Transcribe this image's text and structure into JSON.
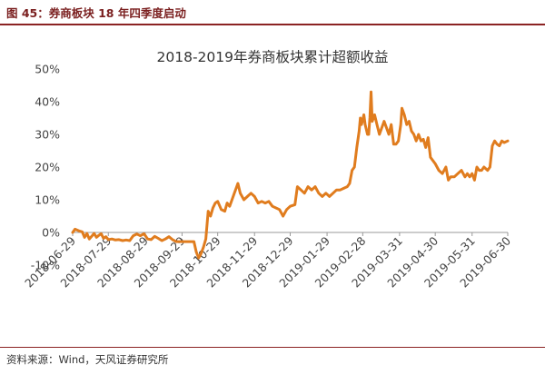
{
  "figure": {
    "caption": "图 45：券商板块 18 年四季度启动",
    "source": "资料来源：Wind，天风证券研究所"
  },
  "colors": {
    "series": "#e07c1e",
    "header_rule": "#8b2323",
    "caption": "#7a1f1f"
  },
  "chart_data": {
    "type": "line",
    "title": "2018-2019年券商板块累计超额收益",
    "y_ticks": [
      "50%",
      "40%",
      "30%",
      "20%",
      "10%",
      "0%",
      "-10%"
    ],
    "ylim": [
      -0.1,
      0.5
    ],
    "x_ticks": [
      "2018-06-29",
      "2018-07-29",
      "2018-08-29",
      "2018-09-29",
      "2018-10-29",
      "2018-11-29",
      "2018-12-29",
      "2019-01-29",
      "2019-02-28",
      "2019-03-31",
      "2019-04-30",
      "2019-05-31",
      "2019-06-30"
    ],
    "xlim": [
      "2018-06-29",
      "2019-06-30"
    ],
    "grid": false,
    "legend": "none",
    "series": [
      {
        "points": [
          [
            "2018-06-29",
            0.0
          ],
          [
            "2018-07-01",
            0.01
          ],
          [
            "2018-07-03",
            0.007
          ],
          [
            "2018-07-05",
            0.004
          ],
          [
            "2018-07-07",
            0.002
          ],
          [
            "2018-07-09",
            -0.015
          ],
          [
            "2018-07-11",
            -0.003
          ],
          [
            "2018-07-13",
            -0.02
          ],
          [
            "2018-07-15",
            -0.012
          ],
          [
            "2018-07-17",
            -0.003
          ],
          [
            "2018-07-19",
            -0.015
          ],
          [
            "2018-07-21",
            -0.009
          ],
          [
            "2018-07-23",
            -0.004
          ],
          [
            "2018-07-25",
            -0.018
          ],
          [
            "2018-07-27",
            -0.013
          ],
          [
            "2018-07-29",
            -0.022
          ],
          [
            "2018-08-01",
            -0.02
          ],
          [
            "2018-08-04",
            -0.023
          ],
          [
            "2018-08-07",
            -0.022
          ],
          [
            "2018-08-10",
            -0.025
          ],
          [
            "2018-08-13",
            -0.023
          ],
          [
            "2018-08-16",
            -0.025
          ],
          [
            "2018-08-19",
            -0.01
          ],
          [
            "2018-08-22",
            -0.005
          ],
          [
            "2018-08-25",
            -0.01
          ],
          [
            "2018-08-28",
            -0.004
          ],
          [
            "2018-08-31",
            -0.02
          ],
          [
            "2018-09-03",
            -0.022
          ],
          [
            "2018-09-06",
            -0.012
          ],
          [
            "2018-09-09",
            -0.018
          ],
          [
            "2018-09-12",
            -0.025
          ],
          [
            "2018-09-15",
            -0.02
          ],
          [
            "2018-09-18",
            -0.013
          ],
          [
            "2018-09-21",
            -0.022
          ],
          [
            "2018-09-24",
            -0.028
          ],
          [
            "2018-09-27",
            -0.028
          ],
          [
            "2018-09-30",
            -0.028
          ],
          [
            "2018-10-03",
            -0.028
          ],
          [
            "2018-10-06",
            -0.028
          ],
          [
            "2018-10-09",
            -0.028
          ],
          [
            "2018-10-11",
            -0.06
          ],
          [
            "2018-10-13",
            -0.078
          ],
          [
            "2018-10-15",
            -0.065
          ],
          [
            "2018-10-17",
            -0.045
          ],
          [
            "2018-10-19",
            -0.02
          ],
          [
            "2018-10-21",
            0.065
          ],
          [
            "2018-10-23",
            0.05
          ],
          [
            "2018-10-25",
            0.075
          ],
          [
            "2018-10-27",
            0.09
          ],
          [
            "2018-10-29",
            0.095
          ],
          [
            "2018-11-01",
            0.07
          ],
          [
            "2018-11-04",
            0.065
          ],
          [
            "2018-11-06",
            0.09
          ],
          [
            "2018-11-08",
            0.08
          ],
          [
            "2018-11-10",
            0.1
          ],
          [
            "2018-11-12",
            0.12
          ],
          [
            "2018-11-14",
            0.14
          ],
          [
            "2018-11-15",
            0.15
          ],
          [
            "2018-11-17",
            0.12
          ],
          [
            "2018-11-20",
            0.1
          ],
          [
            "2018-11-23",
            0.11
          ],
          [
            "2018-11-26",
            0.12
          ],
          [
            "2018-11-29",
            0.11
          ],
          [
            "2018-12-02",
            0.09
          ],
          [
            "2018-12-05",
            0.095
          ],
          [
            "2018-12-08",
            0.09
          ],
          [
            "2018-12-11",
            0.095
          ],
          [
            "2018-12-14",
            0.08
          ],
          [
            "2018-12-17",
            0.075
          ],
          [
            "2018-12-20",
            0.07
          ],
          [
            "2018-12-23",
            0.05
          ],
          [
            "2018-12-26",
            0.07
          ],
          [
            "2018-12-29",
            0.08
          ],
          [
            "2019-01-02",
            0.085
          ],
          [
            "2019-01-04",
            0.14
          ],
          [
            "2019-01-07",
            0.13
          ],
          [
            "2019-01-10",
            0.12
          ],
          [
            "2019-01-13",
            0.14
          ],
          [
            "2019-01-16",
            0.13
          ],
          [
            "2019-01-19",
            0.14
          ],
          [
            "2019-01-22",
            0.12
          ],
          [
            "2019-01-25",
            0.11
          ],
          [
            "2019-01-28",
            0.12
          ],
          [
            "2019-01-31",
            0.11
          ],
          [
            "2019-02-03",
            0.12
          ],
          [
            "2019-02-06",
            0.13
          ],
          [
            "2019-02-09",
            0.13
          ],
          [
            "2019-02-12",
            0.135
          ],
          [
            "2019-02-15",
            0.14
          ],
          [
            "2019-02-17",
            0.15
          ],
          [
            "2019-02-19",
            0.19
          ],
          [
            "2019-02-21",
            0.2
          ],
          [
            "2019-02-23",
            0.26
          ],
          [
            "2019-02-25",
            0.31
          ],
          [
            "2019-02-26",
            0.35
          ],
          [
            "2019-02-27",
            0.33
          ],
          [
            "2019-03-01",
            0.36
          ],
          [
            "2019-03-02",
            0.33
          ],
          [
            "2019-03-04",
            0.3
          ],
          [
            "2019-03-05",
            0.3
          ],
          [
            "2019-03-06",
            0.35
          ],
          [
            "2019-03-07",
            0.43
          ],
          [
            "2019-03-08",
            0.34
          ],
          [
            "2019-03-10",
            0.36
          ],
          [
            "2019-03-12",
            0.33
          ],
          [
            "2019-03-14",
            0.3
          ],
          [
            "2019-03-16",
            0.32
          ],
          [
            "2019-03-18",
            0.34
          ],
          [
            "2019-03-20",
            0.32
          ],
          [
            "2019-03-22",
            0.3
          ],
          [
            "2019-03-24",
            0.33
          ],
          [
            "2019-03-26",
            0.27
          ],
          [
            "2019-03-28",
            0.27
          ],
          [
            "2019-03-30",
            0.28
          ],
          [
            "2019-04-01",
            0.33
          ],
          [
            "2019-04-02",
            0.38
          ],
          [
            "2019-04-04",
            0.36
          ],
          [
            "2019-04-06",
            0.33
          ],
          [
            "2019-04-08",
            0.34
          ],
          [
            "2019-04-10",
            0.31
          ],
          [
            "2019-04-12",
            0.3
          ],
          [
            "2019-04-14",
            0.28
          ],
          [
            "2019-04-16",
            0.3
          ],
          [
            "2019-04-18",
            0.28
          ],
          [
            "2019-04-20",
            0.285
          ],
          [
            "2019-04-22",
            0.26
          ],
          [
            "2019-04-24",
            0.29
          ],
          [
            "2019-04-26",
            0.23
          ],
          [
            "2019-04-28",
            0.22
          ],
          [
            "2019-04-30",
            0.21
          ],
          [
            "2019-05-03",
            0.19
          ],
          [
            "2019-05-06",
            0.18
          ],
          [
            "2019-05-09",
            0.2
          ],
          [
            "2019-05-11",
            0.16
          ],
          [
            "2019-05-13",
            0.17
          ],
          [
            "2019-05-16",
            0.17
          ],
          [
            "2019-05-19",
            0.18
          ],
          [
            "2019-05-22",
            0.19
          ],
          [
            "2019-05-25",
            0.17
          ],
          [
            "2019-05-27",
            0.18
          ],
          [
            "2019-05-29",
            0.17
          ],
          [
            "2019-05-31",
            0.18
          ],
          [
            "2019-06-02",
            0.16
          ],
          [
            "2019-06-04",
            0.2
          ],
          [
            "2019-06-06",
            0.19
          ],
          [
            "2019-06-08",
            0.19
          ],
          [
            "2019-06-10",
            0.2
          ],
          [
            "2019-06-13",
            0.19
          ],
          [
            "2019-06-15",
            0.2
          ],
          [
            "2019-06-17",
            0.265
          ],
          [
            "2019-06-19",
            0.28
          ],
          [
            "2019-06-21",
            0.27
          ],
          [
            "2019-06-23",
            0.265
          ],
          [
            "2019-06-25",
            0.28
          ],
          [
            "2019-06-27",
            0.275
          ],
          [
            "2019-06-30",
            0.28
          ]
        ]
      }
    ]
  }
}
